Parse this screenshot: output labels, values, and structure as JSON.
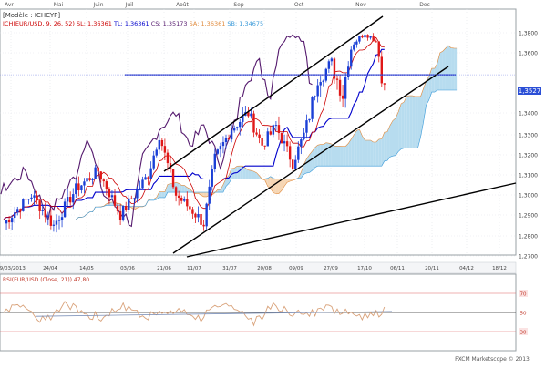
{
  "header": {
    "model_label": "[Modèle : ICHCYP]",
    "indicator_label": "ICH(EUR/USD, 9, 26, 52)",
    "values": [
      {
        "label": "SL: 1,36361",
        "color": "#cc0000"
      },
      {
        "label": "TL: 1,36361",
        "color": "#0000cc"
      },
      {
        "label": "CS: 1,35173",
        "color": "#551a6e"
      },
      {
        "label": "SA: 1,36361",
        "color": "#e08a3c"
      },
      {
        "label": "SB: 1,34675",
        "color": "#3a9ad9"
      }
    ]
  },
  "price_label": "1,3527",
  "footer": {
    "credit": "FXCM Marketscope © 2013"
  },
  "rsi_header": "RSI(EUR/USD (Close, 21)) 47,80",
  "colors": {
    "up_candle": "#1a3fd6",
    "down_candle": "#e01818",
    "tenkan": "#cc0000",
    "kijun": "#0000cc",
    "chikou": "#551a6e",
    "senkou_a": "#e08a3c",
    "senkou_b": "#3a9ad9",
    "bull_cloud": "#b7dcef",
    "bear_cloud": "#f6d6b4",
    "rsi_line": "#d9a27a"
  },
  "chart_data": {
    "type": "line",
    "instrument": "EUR/USD",
    "y_ticks": [
      "1,3800",
      "1,3600",
      "1,3400",
      "1,3300",
      "1,3200",
      "1,3100",
      "1,3000",
      "1,2900",
      "1,2800",
      "1,2700"
    ],
    "x_ticks": [
      "29/03/2013",
      "24/04",
      "14/05",
      "03/06",
      "21/06",
      "11/07",
      "31/07",
      "20/08",
      "09/09",
      "27/09",
      "17/10",
      "06/11",
      "20/11",
      "04/12",
      "18/12"
    ],
    "months": [
      "Avr",
      "Mai",
      "Juin",
      "Juil",
      "Août",
      "Sep",
      "Oct",
      "Nov",
      "Dec"
    ],
    "horizontal_level": 1.3527,
    "rsi_levels": [
      70,
      50,
      30
    ]
  }
}
